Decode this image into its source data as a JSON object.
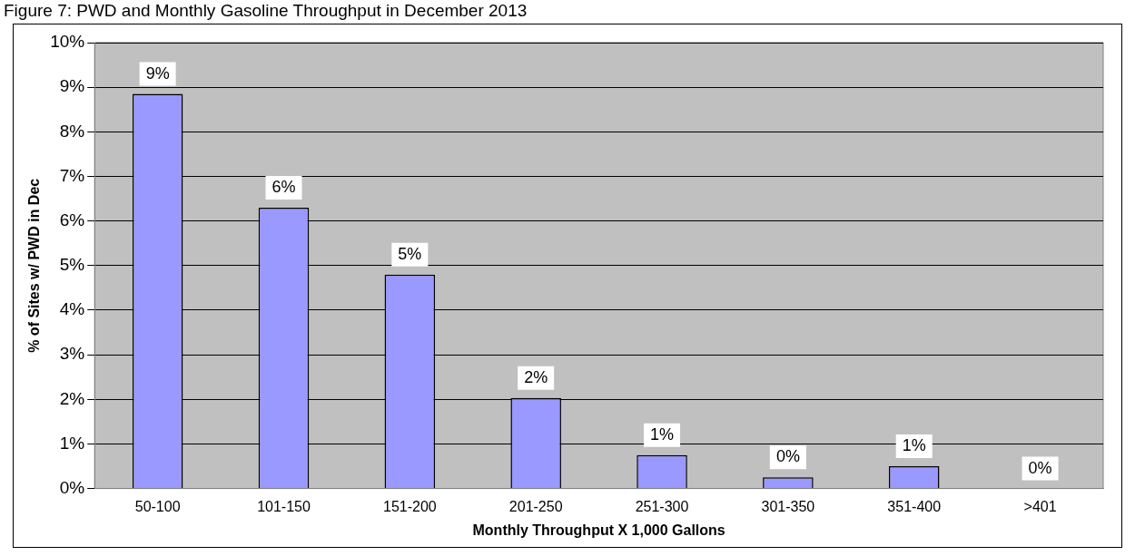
{
  "chart_data": {
    "type": "bar",
    "title": "Figure 7: PWD and Monthly Gasoline Throughput in December 2013",
    "xlabel": "Monthly Throughput X 1,000 Gallons",
    "ylabel": "% of Sites w/ PWD in Dec",
    "categories": [
      "50-100",
      "101-150",
      "151-200",
      "201-250",
      "251-300",
      "301-350",
      "351-400",
      ">401"
    ],
    "values": [
      8.85,
      6.3,
      4.8,
      2.03,
      0.75,
      0.25,
      0.5,
      0
    ],
    "value_labels": [
      "9%",
      "6%",
      "5%",
      "2%",
      "1%",
      "0%",
      "1%",
      "0%"
    ],
    "color": "#9999ff",
    "ylim": [
      0,
      10
    ],
    "yticks": [
      {
        "value": 0,
        "label": "0%"
      },
      {
        "value": 1,
        "label": "1%"
      },
      {
        "value": 2,
        "label": "2%"
      },
      {
        "value": 3,
        "label": "3%"
      },
      {
        "value": 4,
        "label": "4%"
      },
      {
        "value": 5,
        "label": "5%"
      },
      {
        "value": 6,
        "label": "6%"
      },
      {
        "value": 7,
        "label": "7%"
      },
      {
        "value": 8,
        "label": "8%"
      },
      {
        "value": 9,
        "label": "9%"
      },
      {
        "value": 10,
        "label": "10%"
      }
    ],
    "grid": "y",
    "legend": false
  }
}
